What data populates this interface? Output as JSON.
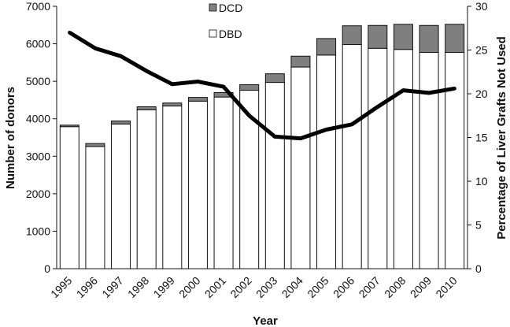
{
  "chart_data": {
    "type": "bar",
    "stacked": true,
    "categories": [
      "1995",
      "1996",
      "1997",
      "1998",
      "1999",
      "2000",
      "2001",
      "2002",
      "2003",
      "2004",
      "2005",
      "2006",
      "2007",
      "2008",
      "2009",
      "2010"
    ],
    "series": [
      {
        "name": "DBD",
        "type": "bar",
        "axis": "left",
        "color": "#ffffff",
        "values": [
          3790,
          3260,
          3860,
          4240,
          4340,
          4470,
          4580,
          4760,
          4970,
          5380,
          5700,
          5980,
          5880,
          5850,
          5770,
          5770
        ]
      },
      {
        "name": "DCD",
        "type": "bar",
        "axis": "left",
        "color": "#7f7f7f",
        "values": [
          40,
          80,
          80,
          80,
          80,
          100,
          120,
          150,
          230,
          290,
          440,
          500,
          610,
          670,
          720,
          750
        ]
      },
      {
        "name": "",
        "type": "line",
        "axis": "right",
        "color": "#000000",
        "values": [
          27.0,
          25.2,
          24.3,
          22.6,
          21.1,
          21.4,
          20.8,
          17.5,
          15.1,
          14.9,
          15.9,
          16.5,
          18.5,
          20.4,
          20.1,
          20.6
        ]
      }
    ],
    "xlabel": "Year",
    "ylabel": "Number of donors",
    "ylabel_right": "Percentage of Liver Grafts Not Used",
    "ylim": [
      0,
      7000
    ],
    "ylim_right": [
      0,
      30
    ],
    "yticks": [
      "0",
      "1000",
      "2000",
      "3000",
      "4000",
      "5000",
      "6000",
      "7000"
    ],
    "yticks_right": [
      "0",
      "5",
      "10",
      "15",
      "20",
      "25",
      "30"
    ],
    "legend": {
      "placement": "top-center",
      "entries": [
        {
          "label": "DCD",
          "color": "#7f7f7f"
        },
        {
          "label": "DBD",
          "color": "#ffffff"
        }
      ]
    },
    "grid": false
  }
}
